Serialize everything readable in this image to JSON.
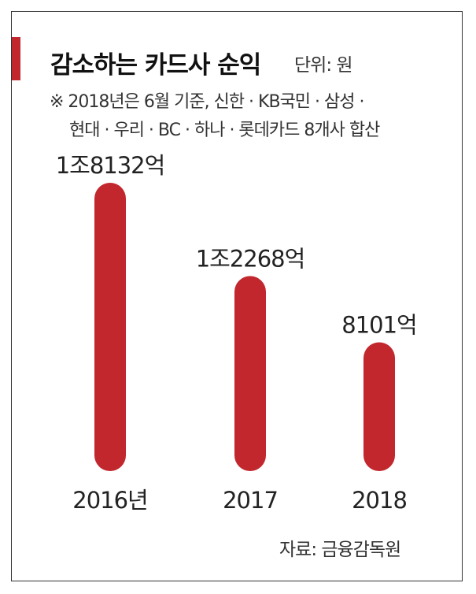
{
  "header": {
    "title": "감소하는 카드사 순익",
    "unit": "단위: 원",
    "note_line1": "※ 2018년은 6월 기준, 신한 · KB국민 · 삼성 ·",
    "note_line2": "현대 · 우리 · BC · 하나 · 롯데카드 8개사 합산"
  },
  "source": "자료: 금융감독원",
  "colors": {
    "bar": "#c1272d",
    "accent": "#c1272d"
  },
  "chart_data": {
    "type": "bar",
    "categories": [
      "2016년",
      "2017",
      "2018"
    ],
    "values": [
      18132,
      12268,
      8101
    ],
    "value_labels": [
      "1조8132억",
      "1조2268억",
      "8101억"
    ],
    "units": "억원",
    "ylim": [
      0,
      18132
    ],
    "grid": false,
    "legend": "none"
  }
}
